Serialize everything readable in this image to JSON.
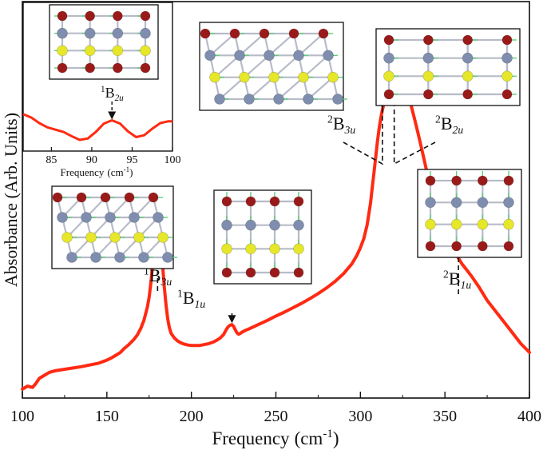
{
  "chart_data": [
    {
      "type": "line",
      "xlabel": "Frequency",
      "xunit_base": "(cm",
      "xunit_sup": "-1",
      "xunit_end": ")",
      "ylabel": "Absorbance (Arb. Units)",
      "xlim": [
        100,
        400
      ],
      "xticks": [
        "100",
        "150",
        "200",
        "250",
        "300",
        "350",
        "400"
      ],
      "color": "#ff2a12",
      "series": [
        {
          "x": [
            100,
            103,
            106,
            108,
            110,
            113,
            116,
            120,
            125,
            130,
            135,
            140,
            145,
            150,
            153,
            156,
            158,
            160,
            163,
            166,
            168,
            170,
            172,
            174,
            175,
            176,
            177,
            178,
            179,
            180,
            181,
            182,
            183,
            184,
            185,
            186,
            187,
            188,
            190,
            192,
            195,
            198,
            200,
            205,
            210,
            213,
            215,
            217,
            219,
            220,
            221,
            222,
            223,
            224,
            225,
            226,
            227,
            228,
            229,
            230,
            232,
            235,
            240,
            245,
            250,
            255,
            260,
            265,
            270,
            275,
            280,
            285,
            290,
            295,
            298,
            300,
            302,
            304,
            306,
            307,
            308,
            309,
            310,
            311,
            312,
            313,
            314,
            315,
            316,
            317,
            318,
            319,
            320,
            321,
            322,
            323,
            324,
            325,
            326,
            327,
            328,
            329,
            330,
            332,
            334,
            336,
            338,
            340,
            343,
            346,
            350,
            353,
            356,
            358,
            360,
            363,
            366,
            370,
            375,
            380,
            385,
            390,
            395,
            400
          ],
          "y": [
            0.015,
            0.022,
            0.019,
            0.028,
            0.04,
            0.047,
            0.054,
            0.058,
            0.061,
            0.064,
            0.067,
            0.071,
            0.075,
            0.082,
            0.088,
            0.095,
            0.1,
            0.108,
            0.118,
            0.13,
            0.14,
            0.155,
            0.175,
            0.205,
            0.228,
            0.26,
            0.3,
            0.34,
            0.37,
            0.378,
            0.372,
            0.345,
            0.3,
            0.25,
            0.21,
            0.178,
            0.157,
            0.144,
            0.133,
            0.126,
            0.12,
            0.117,
            0.116,
            0.116,
            0.12,
            0.124,
            0.128,
            0.133,
            0.141,
            0.148,
            0.155,
            0.16,
            0.163,
            0.164,
            0.16,
            0.152,
            0.145,
            0.142,
            0.144,
            0.147,
            0.151,
            0.156,
            0.165,
            0.174,
            0.184,
            0.193,
            0.203,
            0.213,
            0.224,
            0.236,
            0.249,
            0.264,
            0.282,
            0.305,
            0.325,
            0.342,
            0.363,
            0.395,
            0.445,
            0.48,
            0.515,
            0.55,
            0.585,
            0.615,
            0.64,
            0.66,
            0.677,
            0.69,
            0.7,
            0.71,
            0.718,
            0.725,
            0.732,
            0.735,
            0.738,
            0.738,
            0.735,
            0.728,
            0.72,
            0.71,
            0.698,
            0.685,
            0.671,
            0.64,
            0.608,
            0.575,
            0.54,
            0.505,
            0.455,
            0.418,
            0.375,
            0.35,
            0.33,
            0.318,
            0.305,
            0.29,
            0.275,
            0.252,
            0.22,
            0.195,
            0.17,
            0.145,
            0.12,
            0.1
          ]
        }
      ],
      "annotations": [
        {
          "base": "1",
          "main": "B",
          "sub": "3u",
          "x": 180
        },
        {
          "base": "1",
          "main": "B",
          "sub": "1u",
          "x": 224
        },
        {
          "base": "2",
          "main": "B",
          "sub": "3u",
          "x": 313
        },
        {
          "base": "2",
          "main": "B",
          "sub": "2u",
          "x": 320
        },
        {
          "base": "2",
          "main": "B",
          "sub": "1u",
          "x": 358
        }
      ]
    },
    {
      "type": "line",
      "xlabel": "Frequency",
      "xunit_base": "(cm",
      "xunit_sup": "-1",
      "xunit_end": ")",
      "xlim": [
        81.5,
        100
      ],
      "xticks": [
        "85",
        "90",
        "95",
        "100"
      ],
      "color": "#ff2a12",
      "series": [
        {
          "x": [
            81.5,
            82.5,
            83.5,
            84.5,
            85.5,
            86.5,
            87.5,
            88.5,
            89.5,
            90.5,
            91.5,
            92.5,
            93.5,
            94.5,
            95.5,
            96.5,
            97.5,
            98.5,
            99.5,
            100
          ],
          "y": [
            0.55,
            0.48,
            0.36,
            0.27,
            0.22,
            0.17,
            0.08,
            0.0,
            0.03,
            0.17,
            0.35,
            0.42,
            0.35,
            0.18,
            0.06,
            0.1,
            0.24,
            0.36,
            0.4,
            0.4
          ]
        }
      ],
      "annotations": [
        {
          "base": "1",
          "main": "B",
          "sub": "2u",
          "x": 92.5
        }
      ]
    }
  ],
  "insets": [
    {
      "name": "molecule-inset-b2u-low"
    },
    {
      "name": "molecule-inset-b3u-high"
    },
    {
      "name": "molecule-inset-b2u-high"
    },
    {
      "name": "molecule-inset-b3u-low"
    },
    {
      "name": "molecule-inset-b1u-low"
    },
    {
      "name": "molecule-inset-b1u-high"
    }
  ],
  "atom_colors": {
    "S": "#e6e62a",
    "metal": "#7f8eae",
    "O": "#9a1a1a",
    "arrow": "#5fd07a"
  }
}
